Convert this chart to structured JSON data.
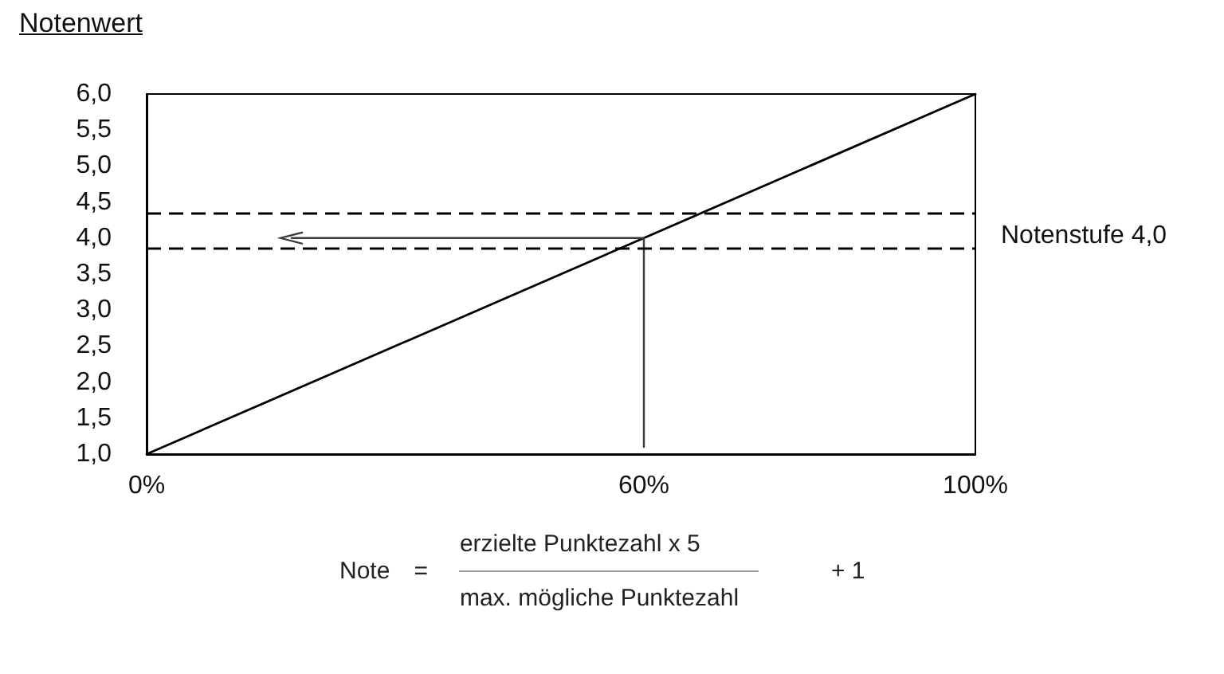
{
  "chart_data": {
    "type": "line",
    "ylabel": "Notenwert",
    "x": [
      0,
      100
    ],
    "series": [
      {
        "color": "#000000",
        "values": [
          1,
          6
        ]
      },
      {
        "type": "step",
        "x": [
          17.5,
          60
        ],
        "color": "#3a3a3a",
        "values": [
          4,
          1.1
        ]
      }
    ],
    "xlim": [
      0,
      100
    ],
    "xticks": [
      {
        "value": 0,
        "label": "0%"
      },
      {
        "value": 60,
        "label": "60%"
      },
      {
        "value": 100,
        "label": "100%"
      }
    ],
    "ylim": [
      1,
      6
    ],
    "yticks": [
      {
        "value": 1,
        "label": "1,0"
      },
      {
        "value": 1.5,
        "label": "1,5"
      },
      {
        "value": 2,
        "label": "2,0"
      },
      {
        "value": 2.5,
        "label": "2,5"
      },
      {
        "value": 3,
        "label": "3,0"
      },
      {
        "value": 3.5,
        "label": "3,5"
      },
      {
        "value": 4,
        "label": "4,0"
      },
      {
        "value": 4.5,
        "label": "4,5"
      },
      {
        "value": 5,
        "label": "5,0"
      },
      {
        "value": 5.5,
        "label": "5,5"
      },
      {
        "value": 6,
        "label": "6,0"
      }
    ],
    "ref_lines": [
      {
        "axis": "y",
        "value": 4.35,
        "line_style": "dashed",
        "color": "#000000"
      },
      {
        "axis": "y",
        "value": 3.85,
        "line_style": "dashed",
        "color": "#000000",
        "label": "Notenstufe 4,0"
      }
    ],
    "annotations": [
      "Note",
      "=",
      "erzielte Punktezahl x 5",
      "max. mögliche Punktezahl",
      "+ 1"
    ],
    "grid": false,
    "line_style": "solid"
  }
}
